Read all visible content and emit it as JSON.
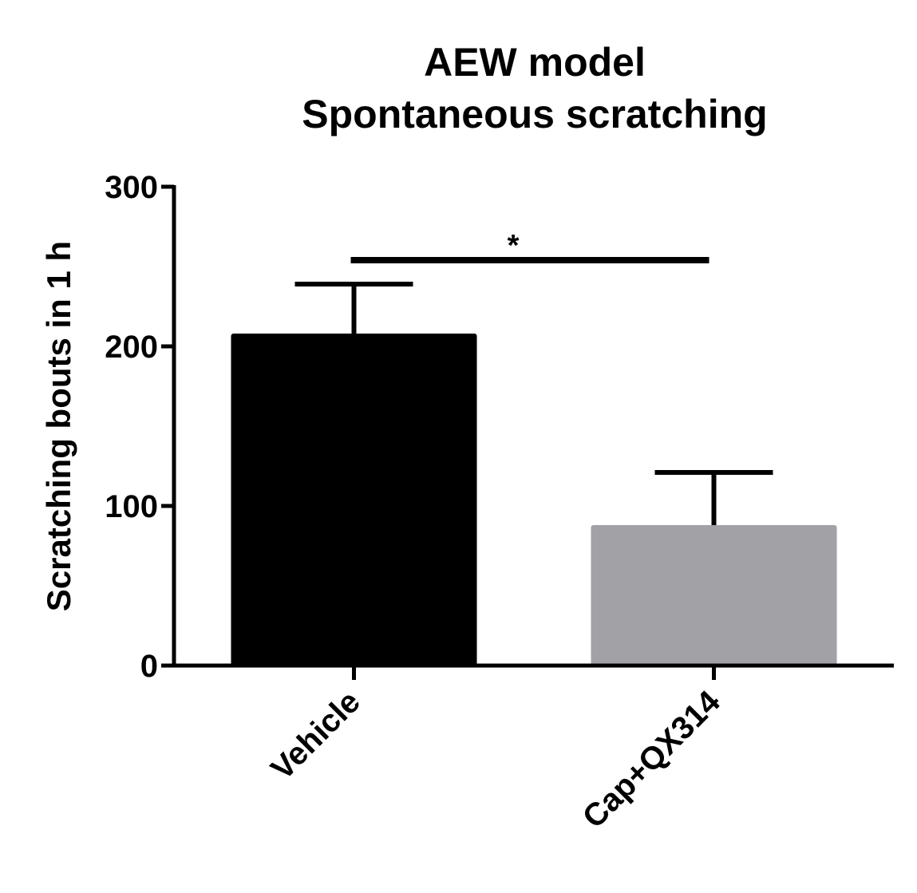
{
  "chart_data": {
    "type": "bar",
    "title": [
      "AEW model",
      "Spontaneous scratching"
    ],
    "y_label": "Scratching bouts in 1 h",
    "categories": [
      "Vehicle",
      "Cap+QX314"
    ],
    "values": [
      208,
      88
    ],
    "errors": [
      31,
      33
    ],
    "colors": [
      "#000000",
      "#a2a1a6"
    ],
    "ylim": [
      0,
      300
    ],
    "yticks": [
      0,
      100,
      200,
      300
    ],
    "significance": {
      "label": "*",
      "y": 254
    }
  }
}
